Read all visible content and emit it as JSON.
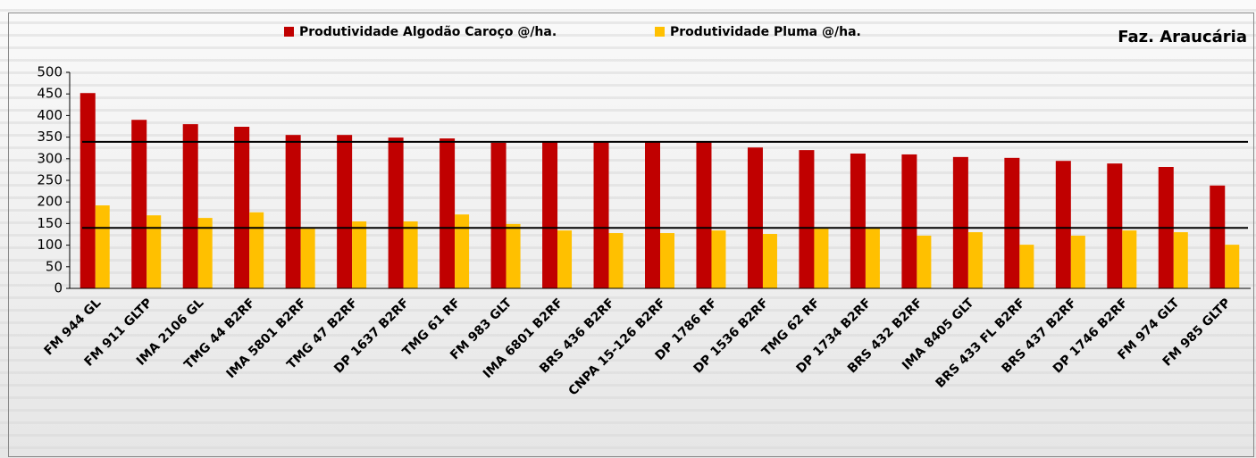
{
  "chart_data": {
    "type": "bar",
    "title": "Faz. Araucária",
    "categories": [
      "FM 944 GL",
      "FM 911 GLTP",
      "IMA 2106 GL",
      "TMG 44 B2RF",
      "IMA 5801 B2RF",
      "TMG 47 B2RF",
      "DP 1637 B2RF",
      "TMG 61 RF",
      "FM 983 GLT",
      "IMA 6801 B2RF",
      "BRS 436 B2RF",
      "CNPA 15-126 B2RF",
      "DP 1786 RF",
      "DP 1536 B2RF",
      "TMG 62 RF",
      "DP 1734 B2RF",
      "BRS 432 B2RF",
      "IMA 8405 GLT",
      "BRS 433 FL B2RF",
      "BRS 437 B2RF",
      "DP 1746 B2RF",
      "FM 974 GLT",
      "FM 985 GLTP"
    ],
    "series": [
      {
        "name": "Produtividade Algodão Caroço @/ha.",
        "color": "#c00000",
        "values": [
          452,
          390,
          380,
          374,
          355,
          355,
          349,
          347,
          337,
          339,
          339,
          339,
          339,
          326,
          320,
          312,
          310,
          304,
          302,
          295,
          289,
          281,
          238
        ]
      },
      {
        "name": "Produtividade Pluma @/ha.",
        "color": "#ffc000",
        "values": [
          192,
          169,
          163,
          176,
          138,
          155,
          155,
          171,
          149,
          134,
          128,
          128,
          134,
          126,
          138,
          138,
          122,
          130,
          101,
          122,
          134,
          130,
          101
        ]
      }
    ],
    "reference_lines": [
      {
        "value": 339,
        "color": "#000000"
      },
      {
        "value": 140,
        "color": "#000000"
      }
    ],
    "ylim": [
      0,
      500
    ],
    "yticks": [
      0,
      50,
      100,
      150,
      200,
      250,
      300,
      350,
      400,
      450,
      500
    ],
    "grid": false,
    "legend": "top"
  }
}
